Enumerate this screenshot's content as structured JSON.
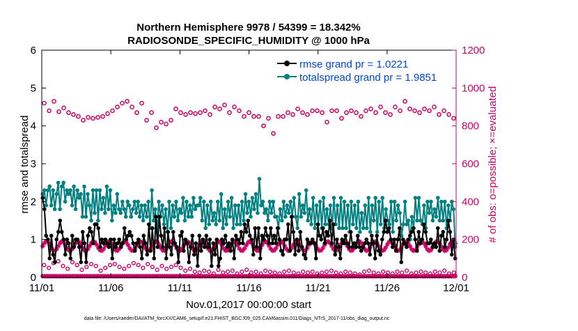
{
  "chart_data": {
    "type": "line",
    "title_line1": "Northern Hemisphere 9978 / 54399 = 18.342%",
    "title_line2": "RADIOSONDE_SPECIFIC_HUMIDITY @ 1000 hPa",
    "xlabel": "Nov.01,2017 00:00:00 start",
    "ylabel_left": "rmse and totalspread",
    "ylabel_right": "# of obs: o=possible; ×=evaluated",
    "footer": "data file: /Users/raeder/DAI/ATM_forcXX/CAM6_setup/f.e21.FHIST_BGC.f09_025.CAM6assim.011/Diags_NTrS_2017-11/obs_diag_output.nc",
    "x_ticks": [
      "11/01",
      "11/06",
      "11/11",
      "11/16",
      "11/21",
      "11/26",
      "12/01"
    ],
    "xlim": [
      0,
      30
    ],
    "ylim_left": [
      0,
      6
    ],
    "y_ticks_left": [
      0,
      1,
      2,
      3,
      4,
      5,
      6
    ],
    "ylim_right": [
      0,
      1200
    ],
    "y_ticks_right": [
      0,
      200,
      400,
      600,
      800,
      1000,
      1200
    ],
    "legend_location": "top-right",
    "colors": {
      "rmse": "#000000",
      "totalspread": "#008080",
      "obs": "#cc0066",
      "legend_text": "#0047d6"
    },
    "series": [
      {
        "name": "rmse grand pr = 1.0221",
        "axis": "left",
        "values": [
          2.1,
          1.8,
          1.1,
          1.0,
          0.5,
          1.1,
          0.6,
          0.4,
          1.0,
          1.2,
          1.5,
          1.2,
          1.0,
          0.6,
          1.0,
          0.9,
          0.5,
          1.1,
          0.8,
          1.0,
          1.0,
          0.8,
          0.4,
          1.2,
          0.9,
          0.4,
          1.1,
          1.3,
          1.2,
          0.9,
          1.4,
          1.4,
          1.3,
          0.8,
          1.0,
          0.9,
          1.0,
          0.9,
          0.8,
          1.0,
          0.5,
          1.0,
          0.8,
          0.9,
          1.0,
          0.8,
          0.9,
          1.3,
          1.0,
          1.1,
          1.2,
          1.1,
          0.9,
          0.7,
          0.9,
          1.0,
          0.8,
          0.5,
          1.1,
          0.9,
          0.6,
          1.4,
          0.7,
          1.3,
          0.5,
          1.6,
          0.8,
          1.6,
          1.1,
          0.8,
          1.3,
          0.5,
          1.2,
          0.8,
          0.6,
          1.2,
          0.9,
          0.8,
          0.4,
          1.1,
          1.2,
          0.7,
          1.0,
          0.9,
          0.4,
          0.8,
          1.1,
          0.6,
          0.9,
          0.3,
          1.1,
          0.7,
          1.0,
          0.8,
          1.1,
          0.8,
          1.0,
          0.3,
          0.9,
          0.6,
          1.0,
          0.3,
          0.5,
          1.0,
          0.9,
          1.1,
          0.8,
          0.9,
          0.7,
          1.0,
          0.5,
          1.1,
          1.0,
          0.9,
          1.2,
          0.9,
          1.4,
          1.2,
          1.5,
          1.1,
          1.0,
          0.6,
          1.3,
          0.8,
          1.3,
          0.5,
          1.1,
          1.0,
          1.3,
          1.1,
          0.9,
          1.3,
          0.9,
          1.1,
          0.9,
          1.3,
          1.0,
          0.7,
          0.6,
          1.0,
          1.0,
          1.4,
          0.7,
          1.6,
          1.2,
          0.6,
          1.0,
          0.7,
          1.2,
          0.8,
          0.6,
          0.5,
          1.0,
          0.9,
          0.9,
          1.0,
          0.9,
          0.5,
          1.4,
          1.1,
          1.0,
          1.3,
          0.9,
          1.2,
          1.1,
          1.5,
          0.9,
          1.4,
          0.6,
          1.0,
          0.8,
          0.5,
          1.0,
          0.9,
          1.1,
          0.9,
          0.8,
          1.2,
          0.8,
          0.9,
          0.8,
          1.1,
          0.8,
          0.7,
          0.8,
          0.9,
          1.0,
          0.9,
          0.6,
          1.1,
          0.9,
          0.5,
          1.1,
          0.7,
          0.6,
          1.0,
          1.2,
          1.5,
          1.2,
          1.3,
          1.0,
          0.8,
          1.0,
          0.7,
          1.0,
          1.3,
          0.4,
          1.0,
          0.9,
          0.8,
          1.0,
          1.1,
          1.2,
          1.3,
          1.0,
          0.7,
          1.2,
          0.9,
          1.0,
          1.4,
          1.2,
          0.9,
          0.9,
          1.0,
          0.8,
          0.9,
          0.8,
          1.3,
          0.7,
          1.1,
          1.2,
          0.8,
          1.0,
          1.5,
          1.2,
          0.6,
          1.0,
          0.5
        ]
      },
      {
        "name": "totalspread grand pr = 1.9851",
        "axis": "left",
        "values": [
          2.2,
          2.3,
          1.9,
          2.3,
          2.4,
          1.9,
          2.3,
          1.8,
          2.2,
          2.5,
          1.8,
          2.4,
          2.5,
          2.0,
          2.3,
          2.2,
          2.3,
          1.9,
          2.4,
          1.8,
          2.3,
          2.1,
          2.2,
          1.6,
          2.4,
          1.6,
          2.2,
          1.9,
          1.5,
          2.3,
          1.7,
          2.3,
          1.5,
          2.3,
          1.8,
          2.1,
          1.7,
          2.4,
          1.8,
          2.3,
          1.5,
          1.9,
          1.7,
          2.2,
          1.8,
          1.7,
          2.0,
          1.8,
          1.6,
          2.0,
          1.9,
          1.6,
          1.8,
          2.0,
          1.7,
          2.0,
          1.6,
          1.9,
          1.5,
          1.9,
          1.6,
          2.0,
          1.3,
          2.3,
          1.5,
          1.8,
          1.2,
          2.0,
          1.6,
          1.9,
          1.4,
          1.8,
          1.2,
          2.0,
          1.3,
          1.9,
          1.6,
          2.0,
          1.5,
          1.8,
          1.7,
          2.1,
          1.5,
          2.0,
          1.6,
          1.9,
          1.6,
          2.1,
          1.8,
          1.9,
          1.9,
          2.1,
          1.5,
          2.0,
          1.3,
          1.9,
          1.4,
          2.0,
          1.5,
          1.7,
          1.4,
          2.0,
          1.5,
          2.2,
          1.3,
          1.8,
          1.4,
          2.0,
          1.6,
          2.1,
          1.3,
          1.9,
          1.4,
          1.9,
          1.4,
          2.0,
          1.5,
          2.2,
          1.7,
          2.0,
          1.6,
          2.1,
          1.8,
          2.2,
          1.7,
          2.6,
          1.9,
          2.0,
          1.7,
          1.8,
          1.5,
          2.0,
          1.7,
          2.0,
          1.6,
          1.6,
          1.3,
          1.8,
          1.5,
          2.0,
          1.6,
          1.9,
          1.7,
          2.0,
          1.6,
          2.1,
          1.6,
          1.3,
          2.2,
          1.6,
          1.9,
          1.7,
          2.3,
          1.5,
          1.8,
          1.4,
          2.1,
          1.3,
          1.9,
          1.4,
          2.0,
          1.3,
          2.1,
          1.4,
          1.8,
          1.4,
          1.9,
          1.3,
          2.1,
          1.4,
          1.9,
          1.3,
          2.1,
          1.3,
          2.0,
          1.3,
          1.9,
          1.2,
          2.0,
          1.4,
          1.9,
          1.3,
          2.0,
          1.2,
          1.7,
          1.3,
          1.9,
          1.3,
          2.1,
          1.2,
          1.9,
          1.5,
          2.1,
          1.2,
          2.0,
          1.4,
          2.1,
          1.3,
          1.8,
          1.5,
          1.4,
          2.0,
          1.2,
          2.0,
          1.5,
          1.9,
          1.7,
          1.1,
          1.4,
          2.0,
          1.4,
          1.5,
          1.0,
          1.6,
          1.3,
          2.1,
          1.5,
          2.1,
          1.5,
          1.4,
          1.9,
          1.3,
          2.0,
          1.7,
          2.0,
          1.5,
          1.8,
          1.6,
          2.1,
          1.5,
          2.0,
          1.5,
          2.0,
          1.3,
          1.9,
          1.5,
          2.0,
          1.8,
          0.8
        ]
      },
      {
        "name": "possible",
        "axis": "right",
        "values": [
          920,
          880,
          930,
          875,
          895,
          870,
          860,
          850,
          830,
          845,
          840,
          845,
          850,
          865,
          880,
          900,
          920,
          930,
          900,
          870,
          920,
          830,
          870,
          790,
          820,
          810,
          830,
          890,
          870,
          860,
          870,
          865,
          870,
          880,
          860,
          900,
          890,
          910,
          870,
          900,
          880,
          850,
          870,
          850,
          850,
          800,
          840,
          760,
          850,
          850,
          870,
          860,
          890,
          870,
          860,
          880,
          880,
          870,
          820,
          880,
          880,
          840,
          870,
          880,
          870,
          850,
          880,
          890,
          870,
          900,
          870,
          860,
          900,
          880,
          930,
          890,
          880,
          870,
          890,
          880,
          900,
          860,
          880,
          860,
          840
        ],
        "small_values": [
          65,
          50,
          75,
          85,
          60,
          45,
          80,
          65,
          40,
          55,
          70,
          60,
          35,
          50,
          65,
          70,
          55,
          45,
          60,
          75,
          65,
          50,
          70,
          55,
          40,
          60,
          45,
          55,
          65,
          50,
          35,
          45,
          30,
          25,
          35,
          30,
          20,
          40,
          25,
          30,
          35,
          20,
          30,
          40,
          25,
          30,
          20,
          35,
          30,
          25,
          20,
          30,
          35,
          25,
          20,
          30,
          25,
          30,
          20,
          25,
          30,
          35,
          25,
          20,
          30,
          25,
          20,
          15,
          30,
          35,
          25,
          20,
          30,
          25,
          20,
          30,
          25,
          35,
          20,
          25,
          30,
          25,
          20,
          30,
          25,
          35,
          20,
          25
        ]
      }
    ]
  }
}
